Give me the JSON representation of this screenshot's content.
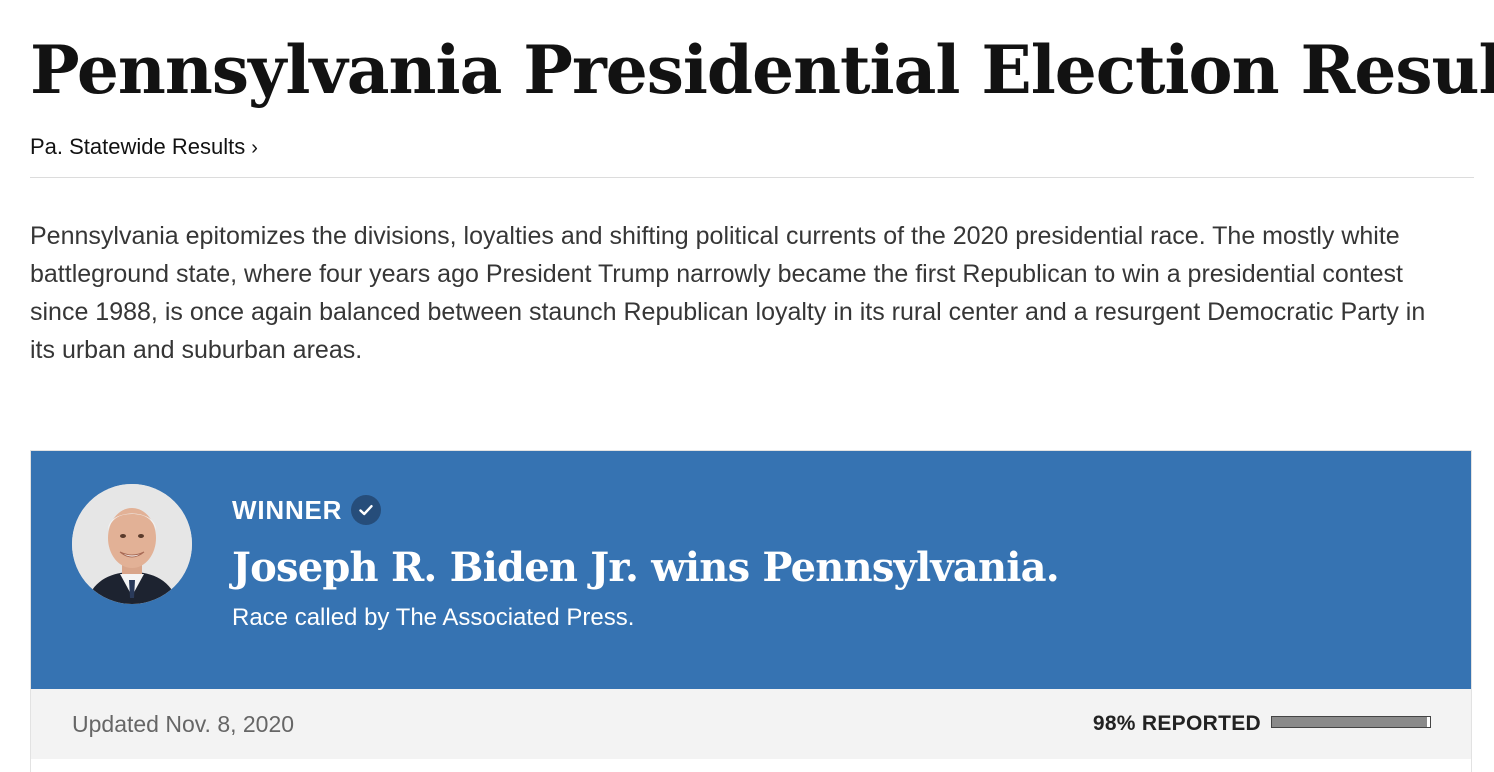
{
  "page": {
    "headline": "Pennsylvania Presidential Election Results",
    "state_link": "Pa. Statewide Results",
    "state_link_chevron": "›",
    "intro": "Pennsylvania epitomizes the divisions, loyalties and shifting political currents of the 2020 presidential race. The mostly white battleground state, where four years ago President Trump narrowly became the first Republican to win a presidential contest since 1988, is once again balanced between staunch Republican loyalty in its rural center and a resurgent Democratic Party in its urban and suburban areas."
  },
  "result_card": {
    "winner_label": "WINNER",
    "winner_icon": "check-circle-icon",
    "candidate_photo": "candidate-portrait",
    "title": "Joseph R. Biden Jr. wins Pennsylvania.",
    "called_by": "Race called by The Associated Press.",
    "updated": "Updated Nov. 8, 2020",
    "reported_label": "98% REPORTED",
    "reported_fraction": 0.98,
    "colors": {
      "banner": "#3673b2",
      "check_badge": "#264d7a",
      "footer": "#f3f3f3",
      "progress_fill": "#8a8a8a"
    }
  }
}
